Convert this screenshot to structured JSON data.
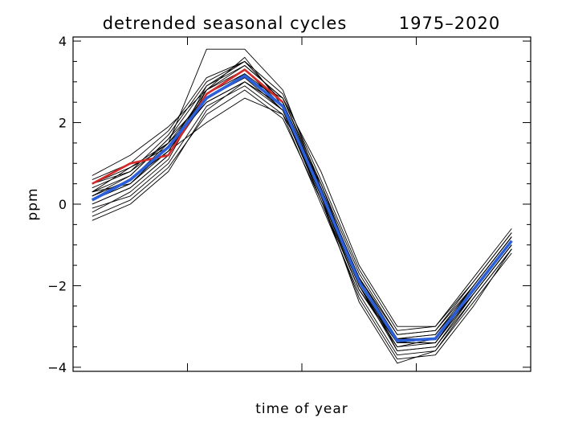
{
  "chart_data": {
    "type": "line",
    "title": "detrended seasonal cycles",
    "subtitle": "1975–2020",
    "xlabel": "time of year",
    "ylabel": "ppm",
    "xlim": [
      0.5,
      12.5
    ],
    "ylim": [
      -4.1,
      4.1
    ],
    "yticks": [
      -4,
      -2,
      0,
      2,
      4
    ],
    "ytick_labels": [
      "−4",
      "−2",
      "0",
      "2",
      "4"
    ],
    "yminor_step": 0.5,
    "xticks": [
      3.5,
      6.5,
      9.5
    ],
    "x": [
      1,
      2,
      3,
      4,
      5,
      6,
      7,
      8,
      9,
      10,
      11,
      12
    ],
    "background_years": [
      {
        "values": [
          0.5,
          0.9,
          1.5,
          2.7,
          3.3,
          2.5,
          0.4,
          -1.9,
          -3.3,
          -3.2,
          -2.1,
          -0.9
        ]
      },
      {
        "values": [
          0.2,
          0.6,
          1.3,
          2.6,
          3.2,
          2.3,
          0.2,
          -2.0,
          -3.5,
          -3.4,
          -2.2,
          -1.0
        ]
      },
      {
        "values": [
          -0.2,
          0.3,
          1.1,
          2.8,
          3.6,
          2.4,
          0.1,
          -2.1,
          -3.4,
          -3.3,
          -2.0,
          -0.8
        ]
      },
      {
        "values": [
          0.1,
          0.5,
          1.4,
          2.5,
          3.0,
          2.4,
          0.3,
          -1.8,
          -3.6,
          -3.5,
          -2.3,
          -1.1
        ]
      },
      {
        "values": [
          0.3,
          0.7,
          1.6,
          2.9,
          3.4,
          2.6,
          0.5,
          -1.7,
          -3.2,
          -3.1,
          -1.9,
          -0.7
        ]
      },
      {
        "values": [
          -0.1,
          0.2,
          1.0,
          2.4,
          2.9,
          2.2,
          0.0,
          -2.2,
          -3.7,
          -3.6,
          -2.4,
          -1.2
        ]
      },
      {
        "values": [
          0.4,
          0.8,
          1.7,
          3.0,
          3.5,
          2.7,
          0.6,
          -1.6,
          -3.1,
          -3.0,
          -1.8,
          -0.6
        ]
      },
      {
        "values": [
          0.0,
          0.4,
          1.2,
          2.6,
          3.1,
          2.3,
          0.2,
          -2.0,
          -3.4,
          -3.4,
          -2.1,
          -0.9
        ]
      },
      {
        "values": [
          0.6,
          1.0,
          1.8,
          3.1,
          3.5,
          2.5,
          0.3,
          -1.9,
          -3.3,
          -3.2,
          -2.0,
          -0.8
        ]
      },
      {
        "values": [
          -0.3,
          0.1,
          0.9,
          2.2,
          2.8,
          2.1,
          0.1,
          -2.3,
          -3.8,
          -3.7,
          -2.5,
          -1.1
        ]
      },
      {
        "values": [
          0.2,
          0.6,
          1.5,
          3.8,
          3.8,
          2.8,
          0.4,
          -1.8,
          -3.3,
          -3.3,
          -2.1,
          -0.9
        ]
      },
      {
        "values": [
          0.1,
          0.5,
          1.3,
          2.0,
          2.6,
          2.2,
          0.5,
          -1.9,
          -3.4,
          -3.4,
          -2.2,
          -1.0
        ]
      },
      {
        "values": [
          0.3,
          0.9,
          1.4,
          2.7,
          3.2,
          2.5,
          0.2,
          -2.1,
          -3.5,
          -3.3,
          -2.0,
          -0.8
        ]
      },
      {
        "values": [
          0.7,
          1.2,
          1.9,
          2.8,
          3.3,
          2.4,
          0.3,
          -2.0,
          -3.6,
          -3.5,
          -2.2,
          -1.0
        ]
      },
      {
        "values": [
          -0.4,
          0.0,
          0.8,
          2.3,
          3.0,
          2.3,
          0.1,
          -2.1,
          -3.4,
          -3.3,
          -2.1,
          -0.9
        ]
      },
      {
        "values": [
          0.2,
          0.7,
          1.6,
          2.6,
          3.1,
          2.6,
          0.8,
          -1.5,
          -3.0,
          -3.0,
          -1.9,
          -0.7
        ]
      },
      {
        "values": [
          0.0,
          0.4,
          1.2,
          2.9,
          3.5,
          2.5,
          0.2,
          -2.4,
          -3.9,
          -3.6,
          -2.3,
          -1.1
        ]
      },
      {
        "values": [
          0.5,
          0.8,
          1.5,
          2.5,
          3.0,
          2.4,
          0.4,
          -1.8,
          -3.2,
          -3.1,
          -2.0,
          -0.8
        ]
      },
      {
        "values": [
          0.1,
          0.6,
          1.3,
          2.7,
          3.3,
          2.5,
          0.3,
          -2.0,
          -3.4,
          -3.4,
          -2.1,
          -0.9
        ]
      },
      {
        "values": [
          0.3,
          0.5,
          1.4,
          2.8,
          3.4,
          2.6,
          0.4,
          -1.9,
          -3.3,
          -3.3,
          -2.2,
          -1.0
        ]
      }
    ],
    "highlight_series": [
      {
        "color": "#d42a2a",
        "values": [
          0.5,
          1.0,
          1.2,
          2.7,
          3.3,
          2.5
        ]
      },
      {
        "color": "#2b5fd9",
        "values": [
          0.1,
          0.6,
          1.4,
          2.6,
          3.15,
          2.4,
          0.3,
          -1.9,
          -3.35,
          -3.3,
          -2.1,
          -0.9
        ]
      }
    ]
  }
}
